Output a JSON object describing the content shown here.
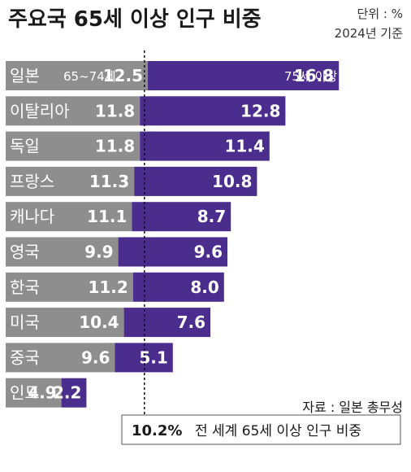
{
  "chart_data": {
    "type": "bar",
    "stacked": true,
    "orientation": "horizontal",
    "title": "주요국 65세 이상 인구 비중",
    "unit_label": "단위 : %",
    "year_label": "2024년 기준",
    "categories": [
      "일본",
      "이탈리아",
      "독일",
      "프랑스",
      "캐나다",
      "영국",
      "한국",
      "미국",
      "중국",
      "인도"
    ],
    "series": [
      {
        "name": "65~74세",
        "values": [
          12.5,
          11.8,
          11.8,
          11.3,
          11.1,
          9.9,
          11.2,
          10.4,
          9.6,
          4.9
        ],
        "color": "#8e8e8e"
      },
      {
        "name": "75세 이상",
        "values": [
          16.8,
          12.8,
          11.4,
          10.8,
          8.7,
          9.6,
          8.0,
          7.6,
          5.1,
          2.2
        ],
        "color": "#4a2d8c"
      }
    ],
    "value_labels_seg1": [
      "12.5",
      "11.8",
      "11.8",
      "11.3",
      "11.1",
      "9.9",
      "11.2",
      "10.4",
      "9.6",
      "4.9"
    ],
    "value_labels_seg2": [
      "16.8",
      "12.8",
      "11.4",
      "10.8",
      "8.7",
      "9.6",
      "8.0",
      "7.6",
      "5.1",
      "2.2"
    ],
    "reference": {
      "value": 10.2,
      "value_text": "10.2%",
      "label": "전 세계 65세 이상 인구 비중"
    },
    "source": "자료 : 일본 총무성"
  }
}
